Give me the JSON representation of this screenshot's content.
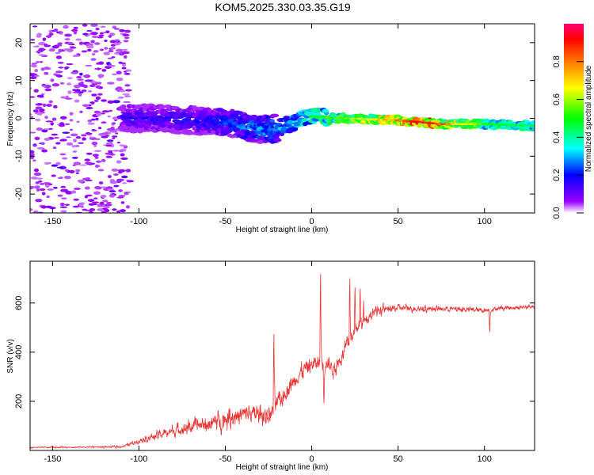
{
  "title": "KOM5.2025.330.03.35.G19",
  "colors": {
    "snr_line": "#ee3333",
    "axis": "#000000",
    "background": "#ffffff"
  },
  "chart_data": [
    {
      "type": "heatmap",
      "xlabel": "Height of straight line (km)",
      "ylabel": "Frequency (Hz)",
      "xlim": [
        -163,
        129
      ],
      "ylim": [
        -25,
        25
      ],
      "xticks": [
        -150,
        -100,
        -50,
        0,
        50,
        100
      ],
      "yticks": [
        -20,
        -10,
        0,
        10,
        20
      ],
      "colorbar": {
        "label": "Normalized spectral amplitude",
        "range": [
          0,
          1
        ],
        "ticks": [
          "0.0",
          "0.2",
          "0.4",
          "0.6",
          "0.8"
        ]
      },
      "trace_center_hz": [
        {
          "x": -110,
          "y": 0
        },
        {
          "x": -90,
          "y": 0
        },
        {
          "x": -70,
          "y": -0.5
        },
        {
          "x": -50,
          "y": -1
        },
        {
          "x": -35,
          "y": -2.5
        },
        {
          "x": -25,
          "y": -3
        },
        {
          "x": -15,
          "y": -2
        },
        {
          "x": -5,
          "y": 0
        },
        {
          "x": 0,
          "y": 0.5
        },
        {
          "x": 20,
          "y": 0
        },
        {
          "x": 50,
          "y": -0.5
        },
        {
          "x": 75,
          "y": -1.5
        },
        {
          "x": 100,
          "y": -1.5
        },
        {
          "x": 129,
          "y": -2
        }
      ],
      "trace_amplitude": [
        {
          "x": -110,
          "y": 0.18
        },
        {
          "x": -60,
          "y": 0.22
        },
        {
          "x": -30,
          "y": 0.32
        },
        {
          "x": -10,
          "y": 0.35
        },
        {
          "x": 0,
          "y": 0.5
        },
        {
          "x": 25,
          "y": 0.6
        },
        {
          "x": 45,
          "y": 0.75
        },
        {
          "x": 65,
          "y": 0.97
        },
        {
          "x": 85,
          "y": 0.7
        },
        {
          "x": 105,
          "y": 0.5
        },
        {
          "x": 129,
          "y": 0.45
        }
      ],
      "noise_region_x": [
        -163,
        -105
      ]
    },
    {
      "type": "line",
      "xlabel": "Height of straight line (km)",
      "ylabel": "SNR (v/v)",
      "xlim": [
        -163,
        129
      ],
      "ylim": [
        0,
        770
      ],
      "xticks": [
        -150,
        -100,
        -50,
        0,
        50,
        100
      ],
      "yticks": [
        200,
        400,
        600
      ],
      "envelope": [
        {
          "x": -163,
          "y": 12
        },
        {
          "x": -110,
          "y": 15
        },
        {
          "x": -100,
          "y": 40
        },
        {
          "x": -90,
          "y": 60
        },
        {
          "x": -75,
          "y": 90
        },
        {
          "x": -60,
          "y": 110
        },
        {
          "x": -45,
          "y": 140
        },
        {
          "x": -35,
          "y": 150
        },
        {
          "x": -25,
          "y": 140
        },
        {
          "x": -20,
          "y": 190
        },
        {
          "x": -12,
          "y": 270
        },
        {
          "x": -5,
          "y": 330
        },
        {
          "x": 0,
          "y": 350
        },
        {
          "x": 8,
          "y": 360
        },
        {
          "x": 13,
          "y": 330
        },
        {
          "x": 20,
          "y": 420
        },
        {
          "x": 30,
          "y": 530
        },
        {
          "x": 38,
          "y": 570
        },
        {
          "x": 50,
          "y": 580
        },
        {
          "x": 80,
          "y": 575
        },
        {
          "x": 100,
          "y": 570
        },
        {
          "x": 110,
          "y": 580
        },
        {
          "x": 129,
          "y": 585
        }
      ],
      "noise_amplitude": [
        {
          "x": -163,
          "y": 6
        },
        {
          "x": -110,
          "y": 8
        },
        {
          "x": -100,
          "y": 25
        },
        {
          "x": -80,
          "y": 50
        },
        {
          "x": -60,
          "y": 75
        },
        {
          "x": -40,
          "y": 95
        },
        {
          "x": -25,
          "y": 90
        },
        {
          "x": -10,
          "y": 80
        },
        {
          "x": 0,
          "y": 80
        },
        {
          "x": 15,
          "y": 70
        },
        {
          "x": 35,
          "y": 55
        },
        {
          "x": 50,
          "y": 30
        },
        {
          "x": 129,
          "y": 18
        }
      ],
      "spikes": [
        {
          "x": -22,
          "y": 520
        },
        {
          "x": 5,
          "y": 770
        },
        {
          "x": 7,
          "y": 170
        },
        {
          "x": 22,
          "y": 740
        },
        {
          "x": 25,
          "y": 690
        },
        {
          "x": 28,
          "y": 680
        },
        {
          "x": 30,
          "y": 640
        },
        {
          "x": 103,
          "y": 470
        }
      ]
    }
  ]
}
